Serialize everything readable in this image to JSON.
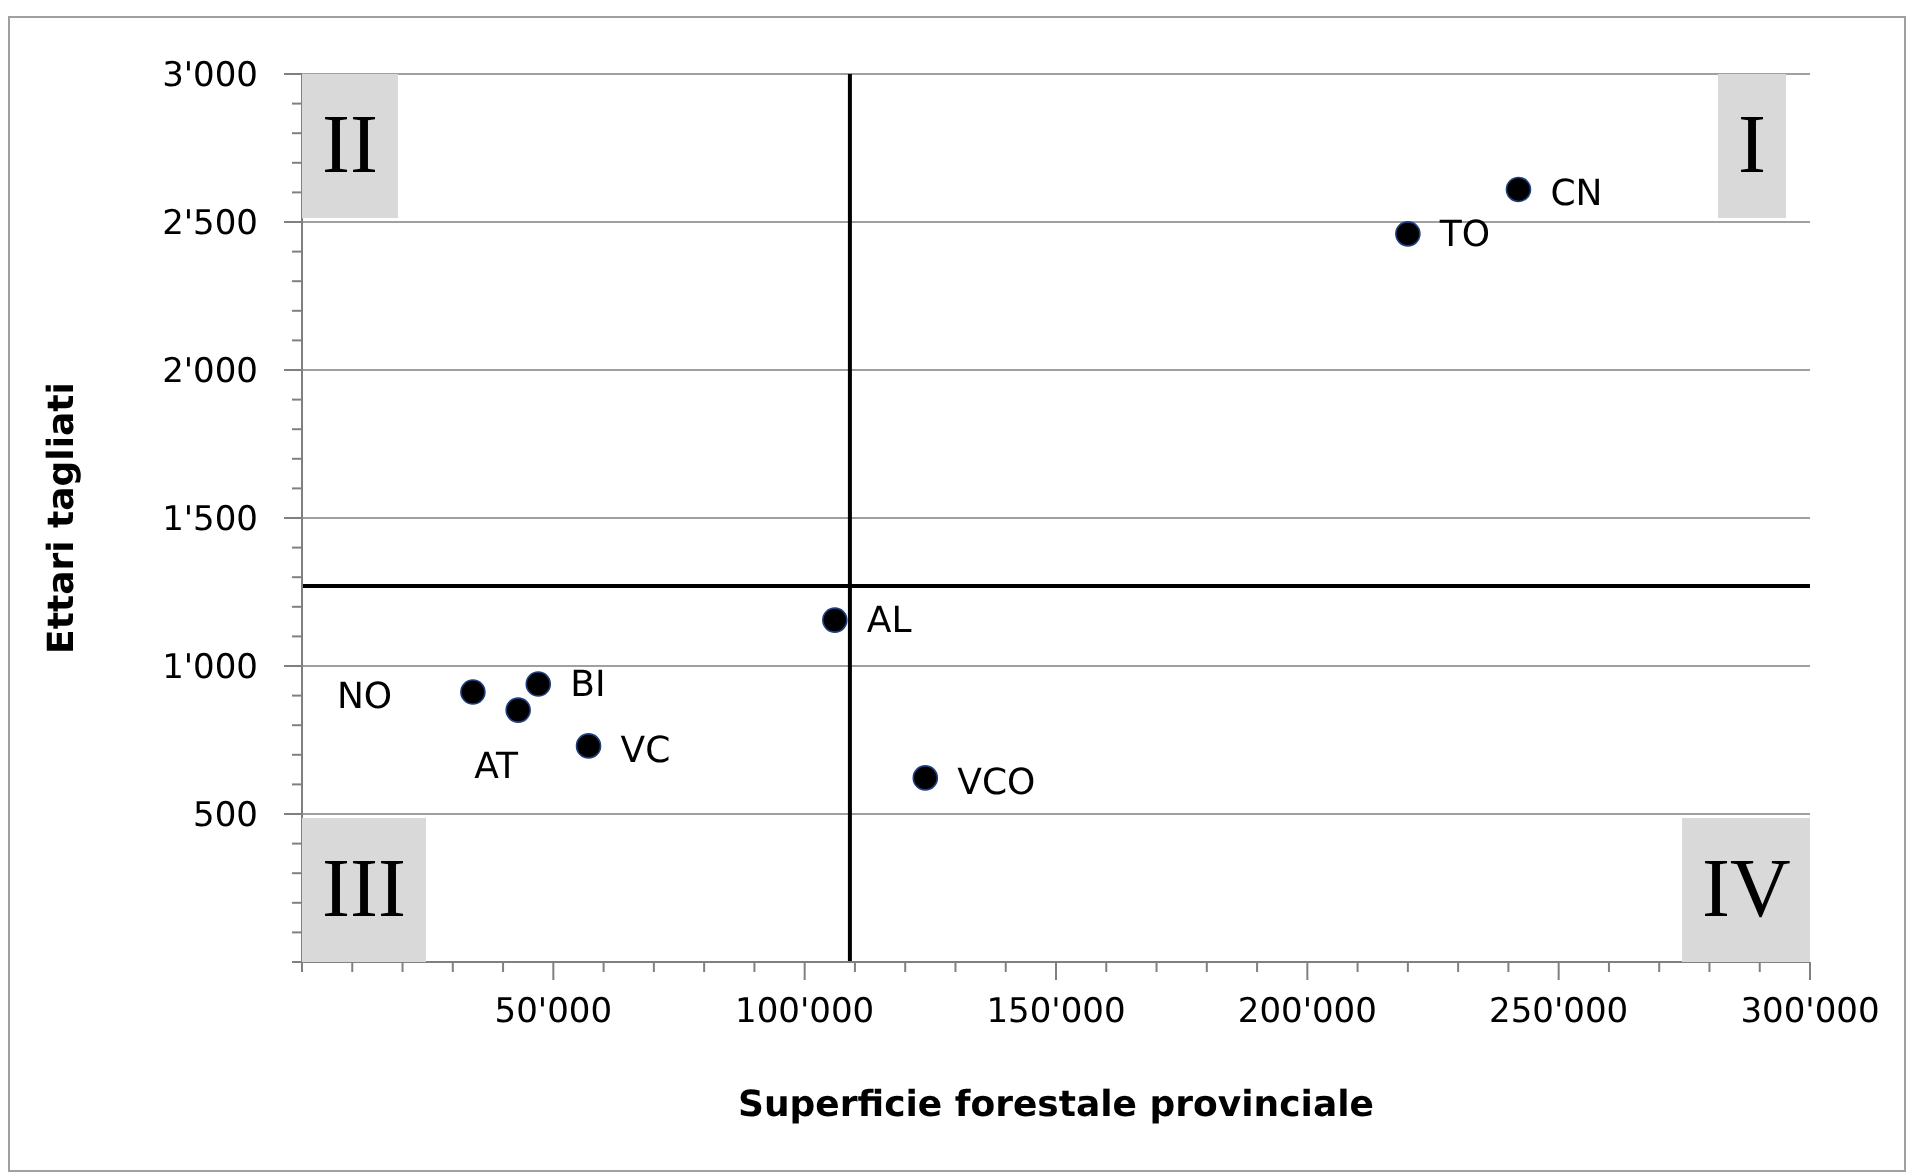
{
  "chart_data": {
    "type": "scatter",
    "xlabel": "Superficie forestale provinciale",
    "ylabel": "Ettari tagliati",
    "xlim": [
      0,
      300000
    ],
    "xticks": [
      {
        "value": 0,
        "label": null
      },
      {
        "value": 10000,
        "label": null
      },
      {
        "value": 20000,
        "label": null
      },
      {
        "value": 30000,
        "label": null
      },
      {
        "value": 40000,
        "label": null
      },
      {
        "value": 50000,
        "label": "50'000"
      },
      {
        "value": 60000,
        "label": null
      },
      {
        "value": 70000,
        "label": null
      },
      {
        "value": 80000,
        "label": null
      },
      {
        "value": 90000,
        "label": null
      },
      {
        "value": 100000,
        "label": "100'000"
      },
      {
        "value": 110000,
        "label": null
      },
      {
        "value": 120000,
        "label": null
      },
      {
        "value": 130000,
        "label": null
      },
      {
        "value": 140000,
        "label": null
      },
      {
        "value": 150000,
        "label": "150'000"
      },
      {
        "value": 160000,
        "label": null
      },
      {
        "value": 170000,
        "label": null
      },
      {
        "value": 180000,
        "label": null
      },
      {
        "value": 190000,
        "label": null
      },
      {
        "value": 200000,
        "label": "200'000"
      },
      {
        "value": 210000,
        "label": null
      },
      {
        "value": 220000,
        "label": null
      },
      {
        "value": 230000,
        "label": null
      },
      {
        "value": 240000,
        "label": null
      },
      {
        "value": 250000,
        "label": "250'000"
      },
      {
        "value": 260000,
        "label": null
      },
      {
        "value": 270000,
        "label": null
      },
      {
        "value": 280000,
        "label": null
      },
      {
        "value": 290000,
        "label": null
      },
      {
        "value": 300000,
        "label": "300'000"
      }
    ],
    "ylim": [
      0,
      3000
    ],
    "yticks": [
      {
        "value": 0,
        "label": null
      },
      {
        "value": 100,
        "label": null
      },
      {
        "value": 200,
        "label": null
      },
      {
        "value": 300,
        "label": null
      },
      {
        "value": 400,
        "label": null
      },
      {
        "value": 500,
        "label": "500"
      },
      {
        "value": 600,
        "label": null
      },
      {
        "value": 700,
        "label": null
      },
      {
        "value": 800,
        "label": null
      },
      {
        "value": 900,
        "label": null
      },
      {
        "value": 1000,
        "label": "1'000"
      },
      {
        "value": 1100,
        "label": null
      },
      {
        "value": 1200,
        "label": null
      },
      {
        "value": 1300,
        "label": null
      },
      {
        "value": 1400,
        "label": null
      },
      {
        "value": 1500,
        "label": "1'500"
      },
      {
        "value": 1600,
        "label": null
      },
      {
        "value": 1700,
        "label": null
      },
      {
        "value": 1800,
        "label": null
      },
      {
        "value": 1900,
        "label": null
      },
      {
        "value": 2000,
        "label": "2'000"
      },
      {
        "value": 2100,
        "label": null
      },
      {
        "value": 2200,
        "label": null
      },
      {
        "value": 2300,
        "label": null
      },
      {
        "value": 2400,
        "label": null
      },
      {
        "value": 2500,
        "label": "2'500"
      },
      {
        "value": 2600,
        "label": null
      },
      {
        "value": 2700,
        "label": null
      },
      {
        "value": 2800,
        "label": null
      },
      {
        "value": 2900,
        "label": null
      },
      {
        "value": 3000,
        "label": "3'000"
      }
    ],
    "grid": "y",
    "marker": "circle",
    "legend": false,
    "series": [
      {
        "name": "CN",
        "color": "#000000",
        "x": [
          242000
        ],
        "values": [
          2610
        ]
      },
      {
        "name": "TO",
        "color": "#000000",
        "x": [
          220000
        ],
        "values": [
          2460
        ]
      },
      {
        "name": "AL",
        "color": "#000000",
        "x": [
          106000
        ],
        "values": [
          1155
        ]
      },
      {
        "name": "VCO",
        "color": "#000000",
        "x": [
          124000
        ],
        "values": [
          622
        ]
      },
      {
        "name": "NO",
        "color": "#000000",
        "x": [
          34000
        ],
        "values": [
          912
        ]
      },
      {
        "name": "BI",
        "color": "#000000",
        "x": [
          47000
        ],
        "values": [
          939
        ]
      },
      {
        "name": "AT",
        "color": "#000000",
        "x": [
          43000
        ],
        "values": [
          851
        ]
      },
      {
        "name": "VC",
        "color": "#000000",
        "x": [
          57000
        ],
        "values": [
          730
        ]
      }
    ],
    "ref_lines": [
      {
        "axis": "x",
        "value": 109000,
        "color": "#000000"
      },
      {
        "axis": "y",
        "value": 1270,
        "color": "#000000"
      }
    ],
    "annotations": [
      "I",
      "II",
      "III",
      "IV"
    ]
  }
}
